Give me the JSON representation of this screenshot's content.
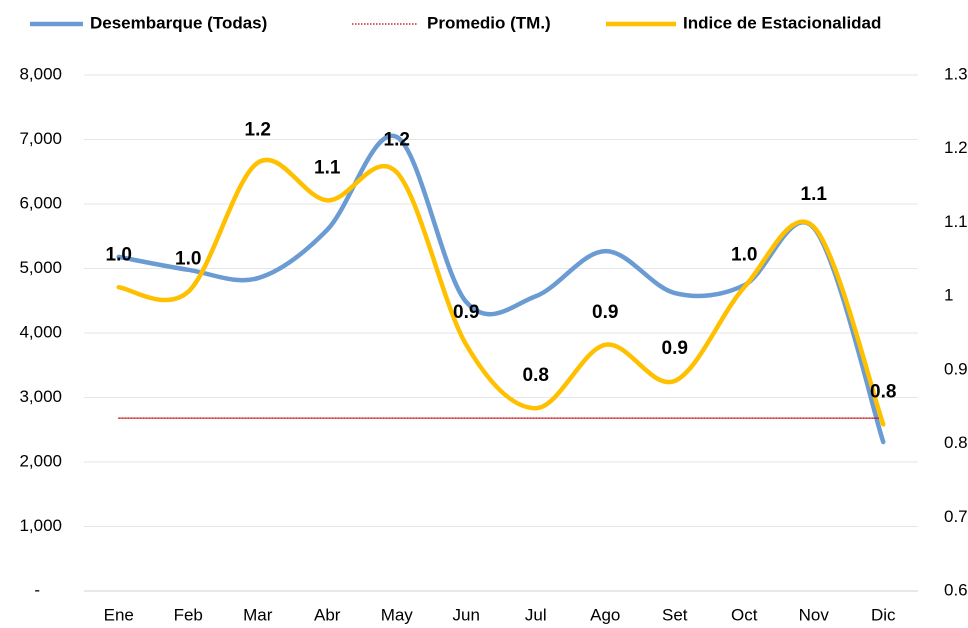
{
  "chart_data": {
    "type": "line",
    "categories": [
      "Ene",
      "Feb",
      "Mar",
      "Abr",
      "May",
      "Jun",
      "Jul",
      "Ago",
      "Set",
      "Oct",
      "Nov",
      "Dic"
    ],
    "series": [
      {
        "name": "Desembarque (Todas)",
        "color": "#6a9bd3",
        "values": [
          5180,
          4980,
          4850,
          5600,
          7040,
          4480,
          4570,
          5270,
          4620,
          4740,
          5630,
          2310
        ]
      },
      {
        "name": "Promedio (TM.)",
        "color": "#c00000",
        "style": "dotted",
        "values": [
          2680,
          2680,
          2680,
          2680,
          2680,
          2680,
          2680,
          2680,
          2680,
          2680,
          2680,
          2680
        ]
      },
      {
        "name": "Indice de Estacionalidad",
        "color": "#ffc000",
        "axis": "y2",
        "values": [
          1.012,
          1.006,
          1.181,
          1.13,
          1.168,
          0.934,
          0.848,
          0.934,
          0.885,
          1.012,
          1.094,
          0.826
        ],
        "value_labels": [
          "1.0",
          "1.0",
          "1.2",
          "1.1",
          "1.2",
          "0.9",
          "0.8",
          "0.9",
          "0.9",
          "1.0",
          "1.1",
          "0.8"
        ]
      }
    ],
    "ylim": [
      0,
      8000
    ],
    "yticks": [
      {
        "value": 0,
        "label": "-"
      },
      {
        "value": 1000,
        "label": "1,000"
      },
      {
        "value": 2000,
        "label": "2,000"
      },
      {
        "value": 3000,
        "label": "3,000"
      },
      {
        "value": 4000,
        "label": "4,000"
      },
      {
        "value": 5000,
        "label": "5,000"
      },
      {
        "value": 6000,
        "label": "6,000"
      },
      {
        "value": 7000,
        "label": "7,000"
      },
      {
        "value": 8000,
        "label": "8,000"
      }
    ],
    "y2lim": [
      0.6,
      1.3
    ],
    "y2ticks": [
      0.6,
      0.7,
      0.8,
      0.9,
      1.0,
      1.1,
      1.2,
      1.3
    ],
    "grid": true,
    "legend": "top"
  }
}
